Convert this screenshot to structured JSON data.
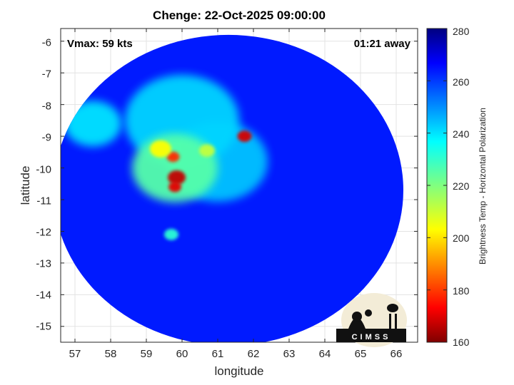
{
  "chart_data": {
    "type": "heatmap",
    "title": "Chenge: 22-Oct-2025 09:00:00",
    "xlabel": "longitude",
    "ylabel": "latitude",
    "xlim": [
      56.6,
      66.6
    ],
    "ylim": [
      -15.5,
      -5.6
    ],
    "x_ticks": [
      "57",
      "58",
      "59",
      "60",
      "61",
      "62",
      "63",
      "64",
      "65",
      "66"
    ],
    "y_ticks": [
      "-6",
      "-7",
      "-8",
      "-9",
      "-10",
      "-11",
      "-12",
      "-13",
      "-14",
      "-15"
    ],
    "grid": true,
    "annotations": {
      "vmax": "Vmax: 59 kts",
      "away": "01:21 away"
    },
    "colorbar": {
      "label": "Brightness Temp - Horizontal Polarization",
      "range": [
        160,
        280
      ],
      "ticks": [
        "280",
        "260",
        "240",
        "220",
        "200",
        "180",
        "160"
      ],
      "colormap": "jet"
    },
    "swath": {
      "center": [
        61.3,
        -10.7
      ],
      "radius_deg": 4.9,
      "background_value": 262
    },
    "features": [
      {
        "name": "eastern-rainband",
        "lon": 61.0,
        "lat": -9.8,
        "value": 242,
        "size": 1.4
      },
      {
        "name": "spiral-band-outer",
        "lon": 60.0,
        "lat": -8.5,
        "value": 240,
        "size": 1.6
      },
      {
        "name": "central-convection",
        "lon": 59.8,
        "lat": -10.0,
        "value": 225,
        "size": 1.2
      },
      {
        "name": "hot-tower-1",
        "lon": 59.85,
        "lat": -10.3,
        "value": 168,
        "size": 0.25
      },
      {
        "name": "hot-tower-2",
        "lon": 59.8,
        "lat": -10.6,
        "value": 172,
        "size": 0.18
      },
      {
        "name": "hot-tower-3",
        "lon": 59.75,
        "lat": -9.65,
        "value": 180,
        "size": 0.18
      },
      {
        "name": "hot-tower-4",
        "lon": 59.4,
        "lat": -9.4,
        "value": 205,
        "size": 0.3
      },
      {
        "name": "hot-tower-5",
        "lon": 61.75,
        "lat": -9.0,
        "value": 170,
        "size": 0.2
      },
      {
        "name": "eyewall-fragment",
        "lon": 60.7,
        "lat": -9.45,
        "value": 212,
        "size": 0.22
      },
      {
        "name": "southern-cell",
        "lon": 59.7,
        "lat": -12.1,
        "value": 230,
        "size": 0.2
      },
      {
        "name": "northwest-swath-edge",
        "lon": 57.5,
        "lat": -8.6,
        "value": 238,
        "size": 0.8
      }
    ]
  },
  "logo": {
    "name": "CIMSS",
    "text": "CIMSS"
  }
}
